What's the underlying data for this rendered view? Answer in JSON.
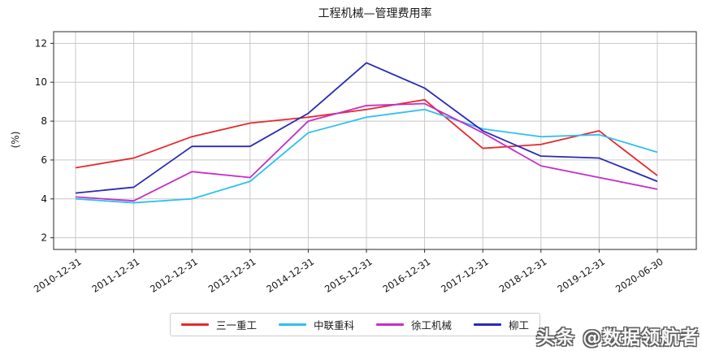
{
  "title": "工程机械—管理费用率",
  "watermark": "头条 @数据领航者",
  "chart_data": {
    "type": "line",
    "title": "工程机械—管理费用率",
    "xlabel": "",
    "ylabel": "(%)",
    "categories": [
      "2010-12-31",
      "2011-12-31",
      "2012-12-31",
      "2013-12-31",
      "2014-12-31",
      "2015-12-31",
      "2016-12-31",
      "2017-12-31",
      "2018-12-31",
      "2019-12-31",
      "2020-06-30"
    ],
    "series": [
      {
        "name": "三一重工",
        "color": "#e8282d",
        "values": [
          5.6,
          6.1,
          7.2,
          7.9,
          8.2,
          8.6,
          9.1,
          6.6,
          6.8,
          7.5,
          5.2
        ]
      },
      {
        "name": "中联重科",
        "color": "#2ec0ef",
        "values": [
          4.0,
          3.8,
          4.0,
          4.9,
          7.4,
          8.2,
          8.6,
          7.6,
          7.2,
          7.3,
          6.4
        ]
      },
      {
        "name": "徐工机械",
        "color": "#c62ec6",
        "values": [
          4.1,
          3.9,
          5.4,
          5.1,
          8.0,
          8.8,
          8.9,
          7.4,
          5.7,
          5.1,
          4.5
        ]
      },
      {
        "name": "柳工",
        "color": "#2a2ab5",
        "values": [
          4.3,
          4.6,
          6.7,
          6.7,
          8.4,
          11.0,
          9.7,
          7.5,
          6.2,
          6.1,
          4.9
        ]
      }
    ],
    "yticks": [
      2,
      4,
      6,
      8,
      10,
      12
    ],
    "ylim": [
      1.4,
      12.6
    ],
    "grid": true,
    "legend_position": "bottom",
    "colors": {
      "grid": "#c8c8c8",
      "axis": "#2a2a2a",
      "tick_label": "#111111"
    }
  }
}
